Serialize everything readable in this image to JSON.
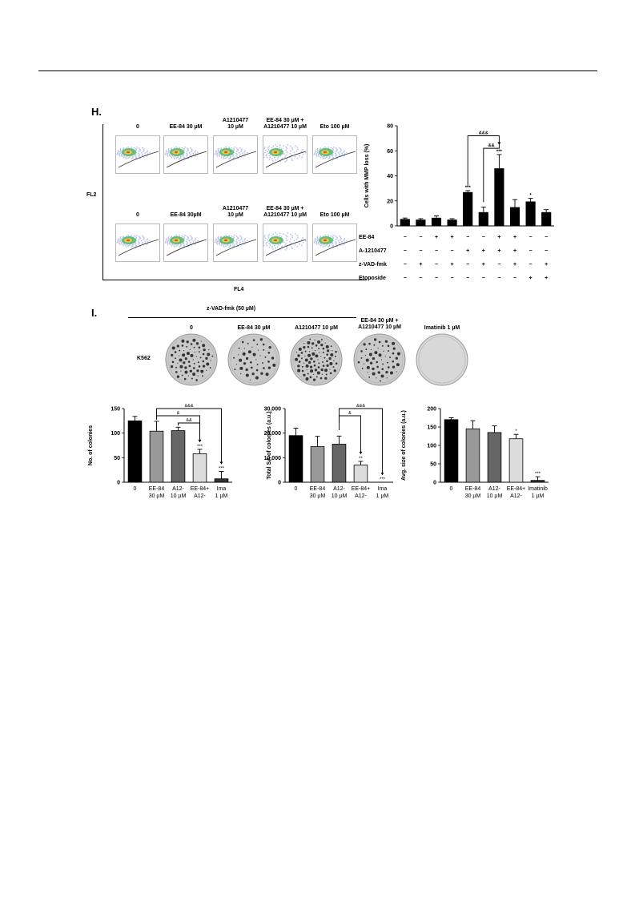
{
  "panels": {
    "h_letter": "H.",
    "i_letter": "I."
  },
  "flow": {
    "top_titles": [
      "0",
      "EE-84 30 µM",
      "A1210477\n10 µM",
      "EE-84 30 µM +\nA1210477  10 µM",
      "Eto 100 µM"
    ],
    "bottom_titles": [
      "0",
      "EE-84 30µM",
      "A1210477\n10 µM",
      "EE-84 30 µM +\nA1210477  10 µM",
      "Eto 100 µM"
    ],
    "zvad_label": "z-VAD-fmk (50 µM)",
    "y_axis_label": "FL2",
    "x_axis_label": "FL4"
  },
  "colony": {
    "row_label": "K562",
    "dish_titles": [
      "0",
      "EE-84 30 µM",
      "A1210477  10 µM",
      "EE-84 30 µM +\nA1210477  10 µM",
      "Imatinib  1 µM"
    ]
  },
  "chart_data": [
    {
      "type": "bar",
      "title": "",
      "ylabel": "Cells with MMP loss (%)",
      "ylim": [
        0,
        80
      ],
      "yticks": [
        "0",
        "20",
        "40",
        "60",
        "80"
      ],
      "values": [
        5.5,
        5,
        6.5,
        5,
        27,
        11,
        46,
        15,
        19.5,
        11
      ],
      "errors": [
        0.8,
        0.8,
        1.5,
        0.8,
        1.2,
        4,
        11,
        6,
        2.5,
        2
      ],
      "sig_labels": [
        "",
        "",
        "",
        "",
        "***",
        "",
        "***",
        "",
        "*",
        ""
      ],
      "brackets": [
        {
          "from": 4,
          "to": 6,
          "label": "&&&"
        },
        {
          "from": 5,
          "to": 6,
          "label": "&&"
        }
      ],
      "treatment_rows": [
        {
          "label": "EE-84",
          "signs": [
            "−",
            "−",
            "+",
            "+",
            "−",
            "−",
            "+",
            "+",
            "−",
            "−"
          ]
        },
        {
          "label": "A-1210477",
          "signs": [
            "−",
            "−",
            "−",
            "−",
            "+",
            "+",
            "+",
            "+",
            "−",
            "−"
          ]
        },
        {
          "label": "z-VAD-fmk",
          "signs": [
            "−",
            "+",
            "−",
            "+",
            "−",
            "+",
            "−",
            "+",
            "−",
            "+"
          ]
        },
        {
          "label": "Etoposide",
          "signs": [
            "−",
            "−",
            "−",
            "−",
            "−",
            "−",
            "−",
            "−",
            "+",
            "+"
          ]
        }
      ]
    },
    {
      "type": "bar",
      "title": "",
      "ylabel": "No. of colonies",
      "ylim": [
        0,
        150
      ],
      "yticks": [
        "0",
        "50",
        "100",
        "150"
      ],
      "categories": [
        "0",
        "EE-84\n30 µM",
        "A12-\n10 µM",
        "EE-84+\nA12-",
        "Ima\n1 µM"
      ],
      "values": [
        125,
        104,
        105,
        58,
        7
      ],
      "errors": [
        9,
        20,
        7,
        9,
        15
      ],
      "colors": [
        "#000000",
        "#999999",
        "#666666",
        "#dcdcdc",
        "#333333"
      ],
      "sig_labels": [
        "",
        "",
        "",
        "***",
        "***"
      ],
      "brackets": [
        {
          "from": 1,
          "to": 4,
          "label": "&&&"
        },
        {
          "from": 1,
          "to": 3,
          "label": "&"
        },
        {
          "from": 2,
          "to": 3,
          "label": "&&"
        }
      ]
    },
    {
      "type": "bar",
      "title": "",
      "ylabel": "Total SA of colonies (a.u.)",
      "ylim": [
        0,
        30000
      ],
      "yticks": [
        "0",
        "10,000",
        "20,000",
        "30,000"
      ],
      "categories": [
        "0",
        "EE-84\n30 µM",
        "A12-\n10 µM",
        "EE-84+\nA12-",
        "Ima\n1 µM"
      ],
      "values": [
        19000,
        14500,
        15500,
        7000,
        0
      ],
      "errors": [
        3000,
        4200,
        3300,
        1500,
        0
      ],
      "colors": [
        "#000000",
        "#999999",
        "#666666",
        "#dcdcdc",
        "#333333"
      ],
      "sig_labels": [
        "",
        "",
        "",
        "**",
        "***"
      ],
      "brackets": [
        {
          "from": 2,
          "to": 4,
          "label": "&&&"
        },
        {
          "from": 2,
          "to": 3,
          "label": "&"
        }
      ]
    },
    {
      "type": "bar",
      "title": "",
      "ylabel": "Avg. size of colonies (a.u.)",
      "ylim": [
        0,
        200
      ],
      "yticks": [
        "0",
        "50",
        "100",
        "150",
        "200"
      ],
      "categories": [
        "0",
        "EE-84\n30 µM",
        "A12-\n10 µM",
        "EE-84+\nA12-",
        "Imatinib\n1 µM"
      ],
      "values": [
        170,
        145,
        135,
        118,
        5
      ],
      "errors": [
        5,
        22,
        18,
        12,
        10
      ],
      "colors": [
        "#000000",
        "#999999",
        "#666666",
        "#dcdcdc",
        "#333333"
      ],
      "sig_labels": [
        "",
        "",
        "",
        "*",
        "***"
      ],
      "brackets": []
    }
  ]
}
